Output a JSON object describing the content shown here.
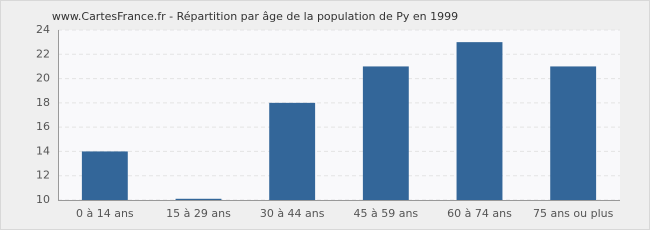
{
  "chart_data": {
    "type": "bar",
    "title": "www.CartesFrance.fr - Répartition par âge de la population de Py en 1999",
    "categories": [
      "0 à 14 ans",
      "15 à 29 ans",
      "30 à 44 ans",
      "45 à 59 ans",
      "60 à 74 ans",
      "75 ans ou plus"
    ],
    "values": [
      14,
      10.1,
      18,
      21,
      23,
      21
    ],
    "color": "#336699",
    "ylim": [
      10,
      24
    ],
    "yticks": [
      10,
      12,
      14,
      16,
      18,
      20,
      22,
      24
    ],
    "grid": true
  }
}
